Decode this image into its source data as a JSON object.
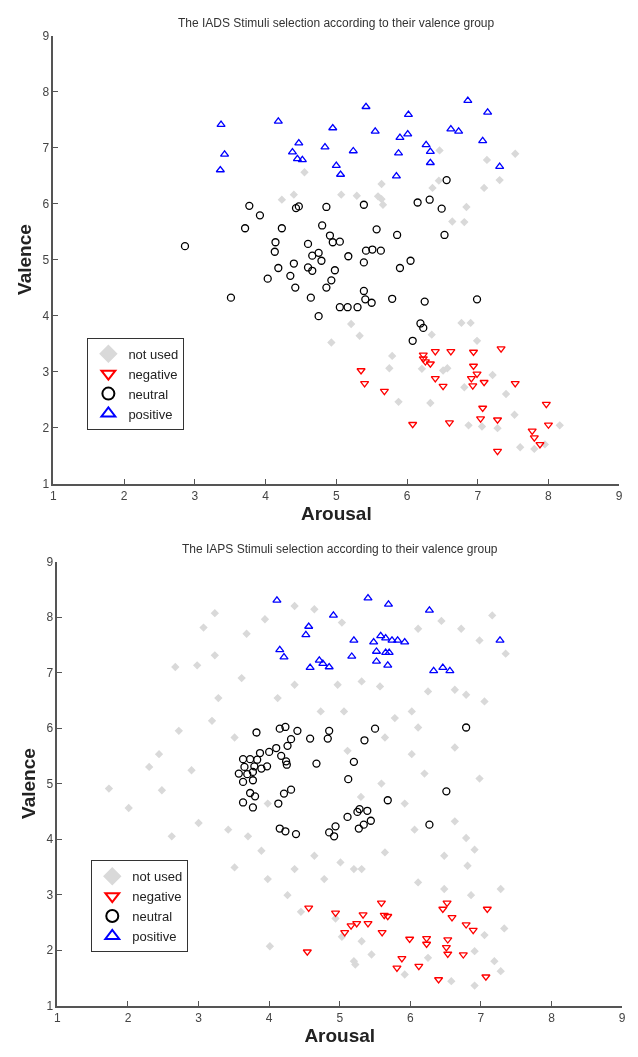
{
  "chart_data": [
    {
      "type": "scatter",
      "title": "The IADS Stimuli selection according to their valence group",
      "xlabel": "Arousal",
      "ylabel": "Valence",
      "xlim": [
        1,
        9
      ],
      "ylim": [
        1,
        9
      ],
      "xticks": [
        1,
        2,
        3,
        4,
        5,
        6,
        7,
        8,
        9
      ],
      "yticks": [
        1,
        2,
        3,
        4,
        5,
        6,
        7,
        8,
        9
      ],
      "legend": "bottom left",
      "series": [
        {
          "name": "not used",
          "color": "#d9d9d9",
          "marker": "diamond",
          "x": [
            4.55,
            4.23,
            4.4,
            5.07,
            5.29,
            5.21,
            4.93,
            5.64,
            5.59,
            5.64,
            5.66,
            6.46,
            6.36,
            6.45,
            6.84,
            6.64,
            6.81,
            7.13,
            7.53,
            7.09,
            7.31,
            5.33,
            6.77,
            6.9,
            6.35,
            6.99,
            5.79,
            5.75,
            6.21,
            6.51,
            6.57,
            7.21,
            6.81,
            7.4,
            5.88,
            6.33,
            7.52,
            6.87,
            7.06,
            7.28,
            8.16,
            7.6,
            7.8,
            7.95
          ],
          "values": [
            6.56,
            6.07,
            6.16,
            6.16,
            6.14,
            3.85,
            3.52,
            6.35,
            6.13,
            6.08,
            5.98,
            6.95,
            6.28,
            6.41,
            5.94,
            5.68,
            5.67,
            6.78,
            6.89,
            6.28,
            6.42,
            3.64,
            3.87,
            3.87,
            3.66,
            3.55,
            3.28,
            3.06,
            3.05,
            3.02,
            3.06,
            2.94,
            2.72,
            2.6,
            2.46,
            2.44,
            2.23,
            2.04,
            2.02,
            1.99,
            2.04,
            1.65,
            1.62,
            1.7
          ]
        },
        {
          "name": "negative",
          "color": "#ff0000",
          "marker": "triangle-down",
          "x": [
            5.35,
            5.4,
            5.68,
            6.08,
            6.6,
            6.23,
            6.23,
            6.26,
            6.4,
            6.62,
            6.33,
            6.4,
            6.51,
            6.94,
            6.94,
            6.99,
            6.91,
            6.93,
            7.09,
            7.33,
            7.53,
            7.07,
            7.04,
            7.28,
            7.28,
            7.97,
            8.0,
            7.77,
            7.8,
            7.88
          ],
          "values": [
            3.02,
            2.79,
            2.65,
            2.06,
            2.09,
            3.3,
            3.23,
            3.18,
            3.36,
            3.36,
            3.14,
            2.88,
            2.74,
            3.35,
            3.1,
            2.96,
            2.88,
            2.75,
            2.81,
            3.41,
            2.79,
            2.35,
            2.16,
            2.14,
            1.58,
            2.42,
            2.05,
            1.94,
            1.82,
            1.7
          ]
        },
        {
          "name": "neutral",
          "color": "#000000",
          "marker": "circle",
          "x": [
            2.86,
            3.51,
            3.77,
            3.92,
            3.71,
            4.23,
            4.43,
            4.47,
            4.86,
            4.8,
            4.91,
            4.95,
            5.05,
            4.14,
            4.13,
            4.6,
            4.66,
            4.75,
            4.79,
            4.4,
            4.18,
            4.03,
            4.35,
            4.6,
            4.66,
            4.42,
            4.98,
            4.93,
            4.86,
            4.64,
            4.75,
            5.05,
            5.16,
            5.3,
            5.17,
            5.39,
            5.57,
            5.86,
            6.53,
            6.56,
            6.15,
            6.32,
            6.49,
            5.42,
            5.51,
            5.63,
            5.39,
            6.05,
            5.9,
            5.39,
            5.41,
            5.5,
            5.79,
            6.25,
            6.99,
            6.19,
            6.23,
            6.08
          ],
          "values": [
            5.24,
            4.32,
            5.96,
            5.79,
            5.56,
            5.56,
            5.92,
            5.95,
            5.94,
            5.61,
            5.43,
            5.31,
            5.32,
            5.31,
            5.14,
            5.28,
            5.07,
            5.12,
            4.98,
            4.93,
            4.85,
            4.66,
            4.71,
            4.86,
            4.8,
            4.5,
            4.81,
            4.63,
            4.5,
            4.32,
            3.99,
            4.15,
            4.15,
            4.15,
            5.06,
            5.98,
            5.54,
            5.44,
            5.44,
            6.42,
            6.02,
            6.07,
            5.91,
            5.16,
            5.18,
            5.16,
            4.95,
            4.98,
            4.85,
            4.44,
            4.29,
            4.23,
            4.3,
            4.25,
            4.29,
            3.86,
            3.78,
            3.55
          ]
        },
        {
          "name": "positive",
          "color": "#0000ff",
          "marker": "triangle",
          "x": [
            3.37,
            4.18,
            4.95,
            4.47,
            4.84,
            5.24,
            3.42,
            4.38,
            4.45,
            4.52,
            3.36,
            5.0,
            5.06,
            5.42,
            6.02,
            5.55,
            5.9,
            6.01,
            5.88,
            6.27,
            6.33,
            6.33,
            5.85,
            6.86,
            7.14,
            6.62,
            6.73,
            7.07,
            7.31
          ],
          "values": [
            7.41,
            7.47,
            7.35,
            7.08,
            7.01,
            6.94,
            6.88,
            6.92,
            6.8,
            6.78,
            6.6,
            6.68,
            6.52,
            7.73,
            7.59,
            7.29,
            7.18,
            7.24,
            6.9,
            7.05,
            6.93,
            6.73,
            6.49,
            7.84,
            7.63,
            7.33,
            7.29,
            7.12,
            6.66
          ]
        }
      ]
    },
    {
      "type": "scatter",
      "title": "The IAPS Stimuli selection according to their valence group",
      "xlabel": "Arousal",
      "ylabel": "Valence",
      "xlim": [
        1,
        9
      ],
      "ylim": [
        1,
        9
      ],
      "xticks": [
        1,
        2,
        3,
        4,
        5,
        6,
        7,
        8,
        9
      ],
      "yticks": [
        1,
        2,
        3,
        4,
        5,
        6,
        7,
        8,
        9
      ],
      "legend": "bottom left",
      "series": [
        {
          "name": "not used",
          "color": "#d9d9d9",
          "marker": "diamond",
          "x": [
            1.73,
            2.01,
            2.3,
            2.44,
            2.48,
            2.67,
            2.62,
            2.72,
            2.9,
            2.98,
            3.0,
            3.07,
            3.23,
            3.23,
            3.19,
            3.28,
            3.42,
            3.51,
            3.61,
            3.51,
            3.68,
            3.89,
            3.98,
            4.01,
            3.98,
            3.94,
            4.12,
            4.36,
            4.64,
            4.36,
            4.26,
            4.36,
            4.64,
            4.73,
            4.78,
            4.97,
            5.01,
            5.06,
            5.2,
            5.2,
            5.11,
            4.45,
            5.3,
            3.7,
            5.03,
            5.31,
            5.57,
            6.02,
            6.11,
            6.44,
            6.72,
            6.98,
            7.16,
            7.35,
            6.63,
            6.79,
            7.05,
            6.25,
            5.78,
            5.64,
            6.11,
            6.63,
            6.02,
            6.98,
            6.2,
            5.59,
            5.92,
            6.63,
            6.79,
            6.91,
            6.48,
            6.06,
            5.64,
            5.31,
            6.81,
            6.11,
            6.48,
            6.86,
            7.28,
            7.33,
            7.19,
            7.28,
            6.91,
            6.58,
            6.25,
            5.92,
            5.45,
            5.31,
            5.22,
            5.03,
            6.91,
            7.05,
            4.94
          ],
          "values": [
            4.91,
            4.56,
            5.3,
            5.53,
            4.88,
            7.1,
            4.05,
            5.95,
            5.24,
            7.13,
            4.29,
            7.81,
            8.07,
            7.31,
            6.13,
            6.54,
            4.17,
            3.49,
            6.9,
            5.83,
            7.7,
            3.79,
            3.28,
            2.07,
            4.64,
            7.96,
            6.54,
            8.2,
            8.14,
            6.78,
            2.99,
            3.46,
            3.7,
            6.3,
            3.28,
            6.78,
            3.58,
            6.3,
            3.46,
            1.8,
            5.59,
            2.69,
            4.76,
            4.05,
            7.9,
            6.84,
            6.75,
            6.3,
            7.79,
            7.93,
            7.79,
            7.58,
            8.03,
            7.34,
            6.69,
            6.6,
            6.48,
            6.66,
            6.18,
            5.83,
            6.01,
            5.65,
            5.53,
            5.09,
            5.18,
            5.0,
            4.64,
            4.32,
            4.02,
            3.81,
            3.7,
            4.17,
            3.76,
            3.46,
            3.52,
            3.22,
            3.1,
            2.99,
            3.1,
            2.39,
            1.8,
            1.62,
            1.36,
            1.44,
            1.86,
            1.56,
            1.92,
            2.16,
            1.74,
            2.24,
            1.98,
            2.27,
            2.57
          ]
        },
        {
          "name": "negative",
          "color": "#ff0000",
          "marker": "triangle-down",
          "x": [
            4.56,
            4.54,
            4.94,
            5.07,
            5.16,
            5.24,
            5.33,
            5.4,
            5.59,
            5.6,
            5.63,
            5.68,
            5.99,
            5.88,
            5.81,
            6.12,
            6.23,
            6.23,
            6.4,
            6.52,
            6.46,
            6.59,
            6.53,
            6.51,
            6.53,
            6.79,
            6.89,
            6.75,
            7.09,
            7.07
          ],
          "values": [
            2.76,
            1.97,
            2.67,
            2.32,
            2.44,
            2.48,
            2.64,
            2.48,
            2.85,
            2.32,
            2.63,
            2.61,
            2.2,
            1.85,
            1.68,
            1.71,
            2.21,
            2.11,
            1.47,
            2.85,
            2.74,
            2.59,
            2.19,
            2.05,
            1.93,
            2.46,
            2.36,
            1.92,
            2.74,
            1.52
          ]
        },
        {
          "name": "neutral",
          "color": "#000000",
          "marker": "circle",
          "x": [
            3.82,
            4.15,
            4.23,
            4.4,
            4.31,
            4.26,
            4.58,
            4.85,
            4.83,
            3.87,
            4.0,
            4.1,
            4.17,
            4.24,
            4.25,
            3.63,
            3.73,
            3.83,
            3.65,
            3.79,
            3.89,
            3.57,
            3.69,
            3.77,
            3.97,
            3.63,
            3.77,
            3.73,
            3.8,
            3.63,
            3.77,
            4.13,
            4.21,
            4.31,
            4.67,
            5.2,
            5.12,
            4.15,
            4.23,
            4.38,
            4.85,
            4.94,
            4.92,
            5.11,
            5.25,
            5.27,
            5.5,
            5.35,
            6.79,
            6.51,
            5.68,
            5.28,
            5.39,
            5.34,
            5.44,
            6.27
          ],
          "values": [
            5.92,
            5.99,
            6.02,
            5.95,
            5.8,
            5.68,
            5.81,
            5.95,
            5.81,
            5.55,
            5.57,
            5.64,
            5.5,
            5.4,
            5.34,
            5.44,
            5.44,
            5.43,
            5.3,
            5.31,
            5.27,
            5.18,
            5.17,
            5.21,
            5.31,
            5.03,
            5.06,
            4.83,
            4.77,
            4.66,
            4.57,
            4.64,
            4.82,
            4.89,
            5.36,
            5.39,
            5.08,
            4.19,
            4.14,
            4.09,
            4.12,
            4.23,
            4.05,
            4.4,
            4.49,
            4.19,
            5.99,
            5.78,
            6.01,
            4.86,
            4.7,
            4.54,
            4.51,
            4.26,
            4.33,
            4.26
          ]
        },
        {
          "name": "positive",
          "color": "#0000ff",
          "marker": "triangle",
          "x": [
            4.11,
            4.91,
            4.56,
            4.52,
            5.2,
            4.15,
            4.21,
            5.17,
            4.58,
            4.71,
            4.76,
            4.85,
            5.4,
            5.69,
            6.27,
            5.48,
            5.58,
            5.65,
            5.74,
            5.82,
            5.92,
            5.52,
            5.65,
            5.7,
            5.52,
            5.68,
            6.33,
            6.46,
            6.56,
            7.27
          ],
          "values": [
            8.3,
            8.03,
            7.83,
            7.68,
            7.58,
            7.41,
            7.28,
            7.29,
            7.09,
            7.22,
            7.16,
            7.1,
            8.34,
            8.23,
            8.12,
            7.55,
            7.66,
            7.62,
            7.58,
            7.58,
            7.55,
            7.38,
            7.36,
            7.36,
            7.2,
            7.13,
            7.03,
            7.09,
            7.03,
            7.58
          ]
        }
      ]
    }
  ]
}
